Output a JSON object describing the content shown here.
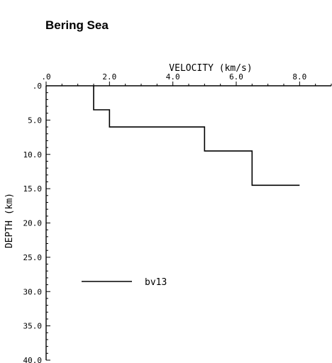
{
  "chart_data": {
    "type": "line",
    "title": "Bering Sea",
    "xlabel": "VELOCITY (km/s)",
    "ylabel": "DEPTH (km)",
    "xlim": [
      0,
      9
    ],
    "ylim": [
      0,
      40
    ],
    "y_inverted": true,
    "x_ticks": [
      ".0",
      "2.0",
      "4.0",
      "6.0",
      "8.0"
    ],
    "y_ticks": [
      ".0",
      "5.0",
      "10.0",
      "15.0",
      "20.0",
      "25.0",
      "30.0",
      "35.0",
      "40.0"
    ],
    "legend_position": "lower-left",
    "series": [
      {
        "name": "bv13",
        "step": true,
        "points": [
          {
            "velocity": 1.5,
            "depth": 0
          },
          {
            "velocity": 1.5,
            "depth": 3.5
          },
          {
            "velocity": 2.0,
            "depth": 3.5
          },
          {
            "velocity": 2.0,
            "depth": 6.0
          },
          {
            "velocity": 5.0,
            "depth": 6.0
          },
          {
            "velocity": 5.0,
            "depth": 9.5
          },
          {
            "velocity": 6.5,
            "depth": 9.5
          },
          {
            "velocity": 6.5,
            "depth": 14.5
          },
          {
            "velocity": 8.0,
            "depth": 14.5
          }
        ]
      }
    ]
  }
}
